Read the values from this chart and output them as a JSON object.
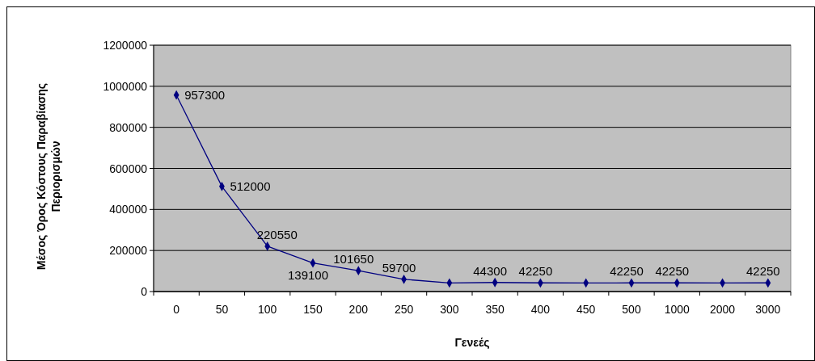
{
  "chart_data": {
    "type": "line",
    "xlabel": "Γενεές",
    "ylabel": "Μέσος Όρος Κόστους Παραβίασης Περιορισμών",
    "categories": [
      "0",
      "50",
      "100",
      "150",
      "200",
      "250",
      "300",
      "350",
      "400",
      "450",
      "500",
      "1000",
      "2000",
      "3000"
    ],
    "series": [
      {
        "color": "#000080",
        "values": [
          957300,
          512000,
          220550,
          139100,
          101650,
          59700,
          42000,
          44300,
          42250,
          42000,
          42250,
          42250,
          42000,
          42250
        ],
        "value_labels": [
          "957300",
          "512000",
          "220550",
          "139100",
          "101650",
          "59700",
          null,
          "44300",
          "42250",
          null,
          "42250",
          "42250",
          null,
          "42250"
        ]
      }
    ],
    "ylim": [
      0,
      1200000
    ],
    "yticks": [
      0,
      200000,
      400000,
      600000,
      800000,
      1000000,
      1200000
    ],
    "grid": "y",
    "marker": "diamond"
  }
}
